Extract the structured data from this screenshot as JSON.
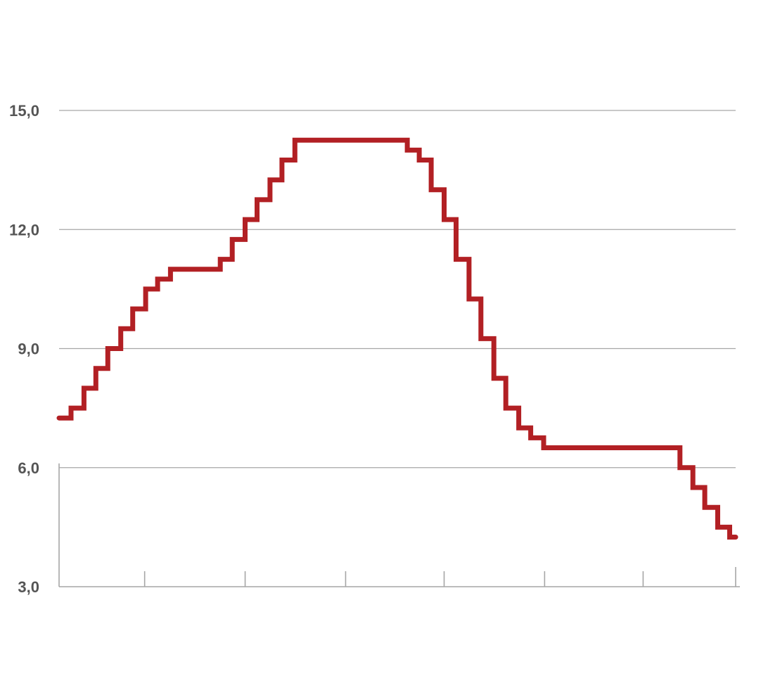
{
  "chart_data": {
    "type": "line",
    "step": true,
    "title": "",
    "xlabel": "",
    "ylabel": "",
    "ylim": [
      3,
      15
    ],
    "xlim": [
      0,
      68
    ],
    "y_ticks": [
      {
        "value": 3,
        "label": "3,0"
      },
      {
        "value": 6,
        "label": "6,0"
      },
      {
        "value": 9,
        "label": "9,0"
      },
      {
        "value": 12,
        "label": "12,0"
      },
      {
        "value": 15,
        "label": "15,0"
      }
    ],
    "x_ticks": [
      8.6,
      18.7,
      28.8,
      38.7,
      48.8,
      58.7,
      68
    ],
    "grid": "horizontal",
    "series": [
      {
        "color": "#b22024",
        "points": [
          [
            0,
            7.25
          ],
          [
            1.2,
            7.25
          ],
          [
            1.2,
            7.5
          ],
          [
            2.5,
            7.5
          ],
          [
            2.5,
            8.0
          ],
          [
            3.7,
            8.0
          ],
          [
            3.7,
            8.5
          ],
          [
            4.9,
            8.5
          ],
          [
            4.9,
            9.0
          ],
          [
            6.2,
            9.0
          ],
          [
            6.2,
            9.5
          ],
          [
            7.4,
            9.5
          ],
          [
            7.4,
            10.0
          ],
          [
            8.7,
            10.0
          ],
          [
            8.7,
            10.5
          ],
          [
            9.9,
            10.5
          ],
          [
            9.9,
            10.75
          ],
          [
            11.2,
            10.75
          ],
          [
            11.2,
            11.0
          ],
          [
            16.2,
            11.0
          ],
          [
            16.2,
            11.25
          ],
          [
            17.4,
            11.25
          ],
          [
            17.4,
            11.75
          ],
          [
            18.7,
            11.75
          ],
          [
            18.7,
            12.25
          ],
          [
            19.9,
            12.25
          ],
          [
            19.9,
            12.75
          ],
          [
            21.2,
            12.75
          ],
          [
            21.2,
            13.25
          ],
          [
            22.4,
            13.25
          ],
          [
            22.4,
            13.75
          ],
          [
            23.7,
            13.75
          ],
          [
            23.7,
            14.25
          ],
          [
            35.0,
            14.25
          ],
          [
            35.0,
            14.0
          ],
          [
            36.2,
            14.0
          ],
          [
            36.2,
            13.75
          ],
          [
            37.4,
            13.75
          ],
          [
            37.4,
            13.0
          ],
          [
            38.7,
            13.0
          ],
          [
            38.7,
            12.25
          ],
          [
            39.9,
            12.25
          ],
          [
            39.9,
            11.25
          ],
          [
            41.2,
            11.25
          ],
          [
            41.2,
            10.25
          ],
          [
            42.4,
            10.25
          ],
          [
            42.4,
            9.25
          ],
          [
            43.7,
            9.25
          ],
          [
            43.7,
            8.25
          ],
          [
            44.9,
            8.25
          ],
          [
            44.9,
            7.5
          ],
          [
            46.2,
            7.5
          ],
          [
            46.2,
            7.0
          ],
          [
            47.4,
            7.0
          ],
          [
            47.4,
            6.75
          ],
          [
            48.7,
            6.75
          ],
          [
            48.7,
            6.5
          ],
          [
            62.4,
            6.5
          ],
          [
            62.4,
            6.0
          ],
          [
            63.7,
            6.0
          ],
          [
            63.7,
            5.5
          ],
          [
            64.9,
            5.5
          ],
          [
            64.9,
            5.0
          ],
          [
            66.2,
            5.0
          ],
          [
            66.2,
            4.5
          ],
          [
            67.4,
            4.5
          ],
          [
            67.4,
            4.25
          ],
          [
            68,
            4.25
          ]
        ]
      }
    ]
  }
}
